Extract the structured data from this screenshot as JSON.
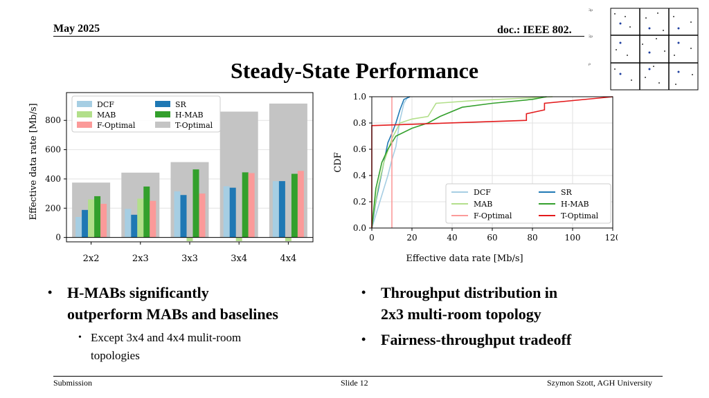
{
  "header": {
    "date": "May 2025",
    "doc": "doc.: IEEE 802."
  },
  "slide": {
    "title": "Steady-State Performance"
  },
  "bullets_left": {
    "main": [
      "H-MABs significantly",
      "outperform MABs and baselines"
    ],
    "sub": [
      "Except 3x4 and 4x4 mulit-room",
      "topologies"
    ]
  },
  "bullets_right": {
    "first": [
      "Throughput distribution in",
      "2x3 multi-room topology"
    ],
    "second": "Fairness-throughput tradeoff"
  },
  "footer": {
    "left": "Submission",
    "center": "Slide 12",
    "right": "Szymon Szott, AGH University"
  },
  "colors": {
    "DCF": "#a6cee3",
    "SR": "#1f78b4",
    "MAB": "#b2df8a",
    "H-MAB": "#33a02c",
    "F-Optimal": "#fb9a99",
    "T-Optimal": "#c4c4c4",
    "T-Optimal-line": "#e31a1c"
  },
  "chart_data": [
    {
      "type": "bar",
      "ylabel": "Effective data rate [Mb/s]",
      "categories": [
        "2x2",
        "2x3",
        "3x3",
        "3x4",
        "4x4"
      ],
      "yticks": [
        0,
        200,
        400,
        600,
        800
      ],
      "ylim": [
        -30,
        990
      ],
      "legend": [
        "DCF",
        "SR",
        "MAB",
        "H-MAB",
        "F-Optimal",
        "T-Optimal"
      ],
      "legend_position": "top-left",
      "series": [
        {
          "name": "T-Optimal",
          "values": [
            375,
            443,
            515,
            860,
            915
          ]
        },
        {
          "name": "DCF",
          "values": [
            140,
            195,
            315,
            350,
            385
          ]
        },
        {
          "name": "SR",
          "values": [
            188,
            155,
            290,
            340,
            385
          ]
        },
        {
          "name": "MAB",
          "values": [
            260,
            265,
            -25,
            -25,
            -25
          ]
        },
        {
          "name": "H-MAB",
          "values": [
            282,
            348,
            465,
            445,
            435
          ]
        },
        {
          "name": "F-Optimal",
          "values": [
            230,
            250,
            300,
            440,
            455
          ]
        }
      ]
    },
    {
      "type": "line",
      "xlabel": "Effective data rate [Mb/s]",
      "ylabel": "CDF",
      "xlim": [
        0,
        120
      ],
      "ylim": [
        0,
        1
      ],
      "xticks": [
        0,
        20,
        40,
        60,
        80,
        100,
        120
      ],
      "yticks": [
        "0.0",
        "0.2",
        "0.4",
        "0.6",
        "0.8",
        "1.0"
      ],
      "legend": [
        "DCF",
        "SR",
        "MAB",
        "H-MAB",
        "F-Optimal",
        "T-Optimal"
      ],
      "legend_position": "bottom-right",
      "series": [
        {
          "name": "DCF",
          "points": [
            [
              0,
              0
            ],
            [
              2,
              0.1
            ],
            [
              4,
              0.2
            ],
            [
              6,
              0.3
            ],
            [
              8,
              0.4
            ],
            [
              10,
              0.52
            ],
            [
              12,
              0.62
            ],
            [
              14,
              0.82
            ],
            [
              16,
              0.95
            ],
            [
              18,
              1.0
            ]
          ]
        },
        {
          "name": "SR",
          "points": [
            [
              0,
              0
            ],
            [
              1,
              0.1
            ],
            [
              2,
              0.2
            ],
            [
              4,
              0.35
            ],
            [
              6,
              0.5
            ],
            [
              8,
              0.65
            ],
            [
              10,
              0.72
            ],
            [
              12,
              0.8
            ],
            [
              14,
              0.9
            ],
            [
              16,
              0.98
            ],
            [
              19,
              1.0
            ]
          ]
        },
        {
          "name": "MAB",
          "points": [
            [
              0,
              0
            ],
            [
              1,
              0.12
            ],
            [
              3,
              0.3
            ],
            [
              6,
              0.5
            ],
            [
              10,
              0.68
            ],
            [
              14,
              0.8
            ],
            [
              20,
              0.83
            ],
            [
              28,
              0.85
            ],
            [
              32,
              0.95
            ],
            [
              50,
              0.97
            ],
            [
              90,
              1.0
            ]
          ]
        },
        {
          "name": "H-MAB",
          "points": [
            [
              0,
              0
            ],
            [
              2,
              0.3
            ],
            [
              5,
              0.5
            ],
            [
              8,
              0.6
            ],
            [
              12,
              0.7
            ],
            [
              20,
              0.76
            ],
            [
              28,
              0.8
            ],
            [
              34,
              0.85
            ],
            [
              45,
              0.92
            ],
            [
              60,
              0.95
            ],
            [
              80,
              0.98
            ],
            [
              87,
              1.0
            ]
          ]
        },
        {
          "name": "F-Optimal",
          "points": [
            [
              10,
              0
            ],
            [
              10,
              1.0
            ]
          ]
        },
        {
          "name": "T-Optimal",
          "points": [
            [
              0,
              0
            ],
            [
              0,
              0.78
            ],
            [
              77,
              0.82
            ],
            [
              77,
              0.87
            ],
            [
              86,
              0.9
            ],
            [
              86,
              0.95
            ],
            [
              120,
              1.0
            ]
          ]
        }
      ]
    }
  ]
}
